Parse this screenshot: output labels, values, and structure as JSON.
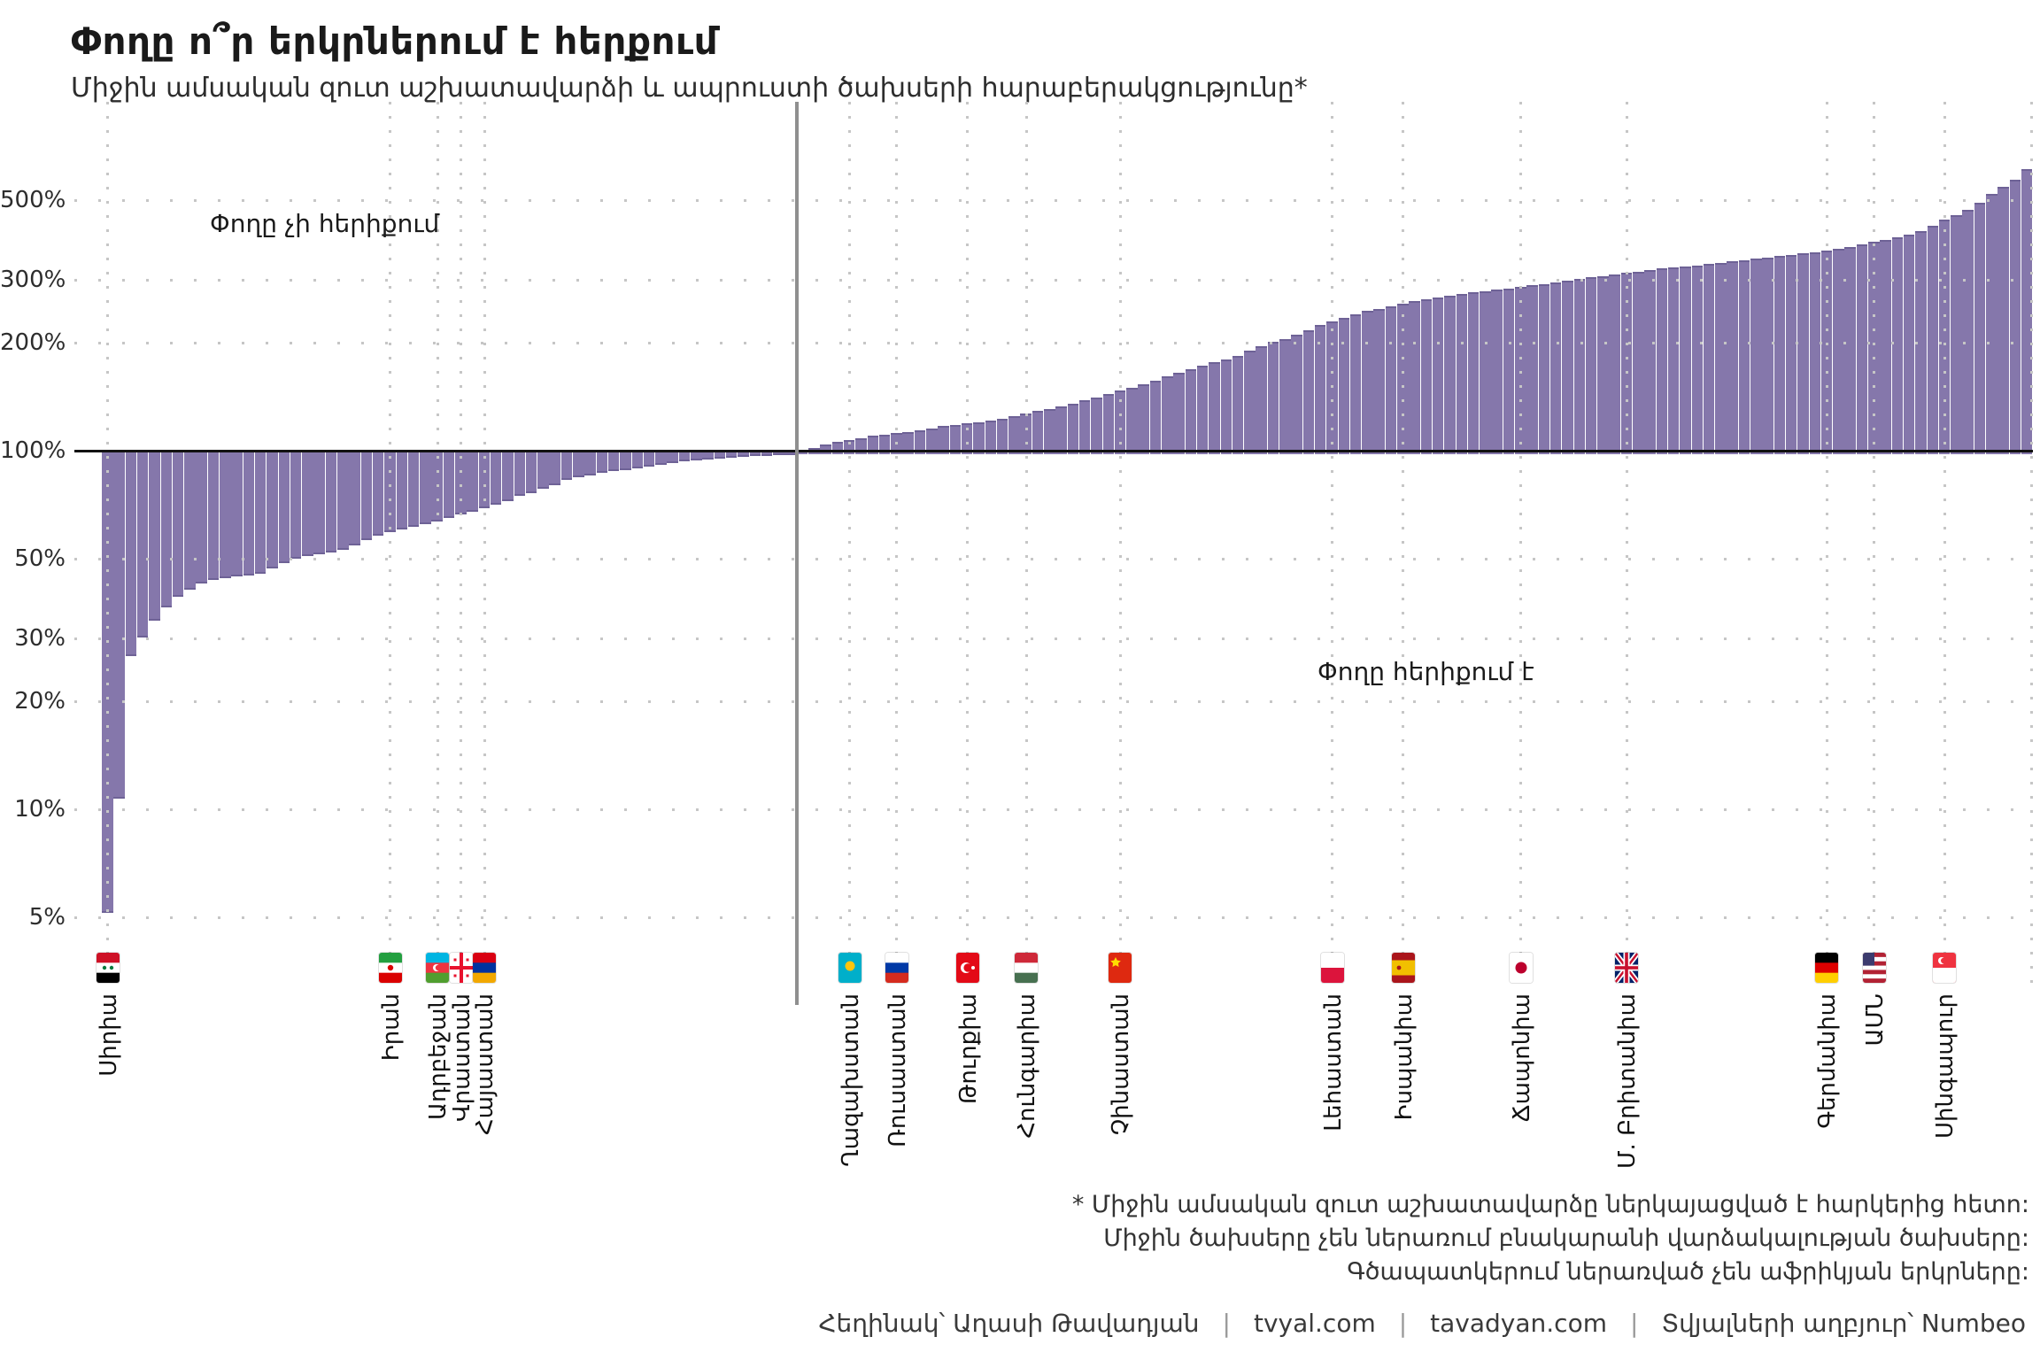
{
  "header": {
    "title": "Փողը ո՞ր երկրներում է հերքում",
    "subtitle": "Միջին ամսական զուտ աշխատավարձի և ապրուստի ծախսերի հարաբերակցությունը*"
  },
  "chart_data": {
    "type": "bar",
    "title": "Փողը ո՞ր երկրներում է հերքում",
    "subtitle": "Միջին ամսական զուտ աշխատավարձի և ապրուստի ծախսերի հարաբերակցությունը*",
    "yscale": "log",
    "unit": "%",
    "yticks": [
      5,
      10,
      20,
      30,
      50,
      100,
      200,
      300,
      500
    ],
    "ylim": [
      4.5,
      650
    ],
    "baseline_value": 100,
    "n_bars": 164,
    "below_baseline_count": 59,
    "grid": "dotted",
    "values": [
      5.2,
      10.8,
      27,
      30.5,
      34,
      37,
      39.5,
      41.5,
      43,
      44,
      44.5,
      45,
      45.5,
      46,
      47.5,
      49,
      50.5,
      51.5,
      52,
      52.5,
      53.5,
      55,
      57,
      58.5,
      60,
      61,
      62,
      63,
      64,
      65.5,
      67,
      68.5,
      70,
      71.5,
      73,
      75.5,
      77,
      79,
      81,
      84,
      85.5,
      86.5,
      87.5,
      88.5,
      89.5,
      90.5,
      91.5,
      92.5,
      93.5,
      94.5,
      95,
      95.5,
      96,
      96.5,
      97,
      97.5,
      98,
      98.5,
      99.5,
      100.5,
      102,
      104,
      106,
      107,
      108.5,
      110,
      111,
      112,
      113,
      114,
      115.5,
      117,
      118,
      119,
      120,
      121,
      123,
      125,
      127,
      129,
      131,
      133,
      135.5,
      138,
      141,
      144,
      147,
      150,
      153.5,
      157,
      161,
      165,
      169,
      173,
      177,
      180,
      184,
      190,
      196,
      201,
      205,
      211,
      217,
      224,
      230,
      235,
      240,
      245,
      249,
      253,
      257,
      261,
      265,
      268,
      271,
      274,
      277,
      279,
      281,
      283,
      286,
      289,
      292,
      295,
      298,
      301,
      304,
      307,
      310,
      313,
      316,
      319,
      322,
      325,
      327,
      329,
      331,
      334,
      337,
      340,
      343,
      346,
      349,
      352,
      355,
      358,
      362,
      366,
      370,
      376,
      382,
      388,
      394,
      400,
      410,
      425,
      440,
      455,
      470,
      490,
      520,
      545,
      570,
      610
    ],
    "annotations": {
      "left": "Փողը չի հերիքում",
      "right": "Փողը հերիքում է"
    },
    "labeled_countries": [
      {
        "name": "Սիրիա",
        "flag": "syria",
        "bar": 1,
        "value": 5.2
      },
      {
        "name": "Իրան",
        "flag": "iran",
        "bar": 25,
        "value": 60
      },
      {
        "name": "Ադրբեջան",
        "flag": "azerbaijan",
        "bar": 29,
        "value": 64
      },
      {
        "name": "Վրաստան",
        "flag": "georgia",
        "bar": 31,
        "value": 67
      },
      {
        "name": "Հայաստան",
        "flag": "armenia",
        "bar": 33,
        "value": 70
      },
      {
        "name": "Ղազախստան",
        "flag": "kazakhstan",
        "bar": 64,
        "value": 107
      },
      {
        "name": "Ռուսաստան",
        "flag": "russia",
        "bar": 68,
        "value": 112
      },
      {
        "name": "Թուրքիա",
        "flag": "turkey",
        "bar": 74,
        "value": 119
      },
      {
        "name": "Հունգարիա",
        "flag": "hungary",
        "bar": 79,
        "value": 127
      },
      {
        "name": "Չինաստան",
        "flag": "china",
        "bar": 87,
        "value": 147
      },
      {
        "name": "Լեհաստան",
        "flag": "poland",
        "bar": 105,
        "value": 230
      },
      {
        "name": "Իսպանիա",
        "flag": "spain",
        "bar": 111,
        "value": 257
      },
      {
        "name": "Ճապոնիա",
        "flag": "japan",
        "bar": 121,
        "value": 286
      },
      {
        "name": "Մ. Բրիտանիա",
        "flag": "uk",
        "bar": 130,
        "value": 313
      },
      {
        "name": "Գերմանիա",
        "flag": "germany",
        "bar": 147,
        "value": 362
      },
      {
        "name": "ԱՄՆ",
        "flag": "usa",
        "bar": 151,
        "value": 382
      },
      {
        "name": "Սինգապուր",
        "flag": "singapore",
        "bar": 157,
        "value": 440
      }
    ],
    "colors": {
      "bar": "#8577AB",
      "bar_edge": "#6E6296",
      "baseline": "#111111",
      "separator": "#8F8F8F",
      "grid": "#C6C6C6"
    }
  },
  "footnote": {
    "lines": [
      "* Միջին ամսական զուտ աշխատավարձը ներկայացված է հարկերից հետո:",
      "Միջին ծախսերը չեն ներառում բնակարանի վարձակալության ծախսերը:",
      "Գծապատկերում ներառված չեն աֆրիկյան երկրները:"
    ]
  },
  "credits": {
    "author": "Հեղինակ՝ Աղասի Թավադյան",
    "site1": "tvyal.com",
    "site2": "tavadyan.com",
    "source": "Տվյալների աղբյուր՝ Numbeo",
    "separator": "|"
  }
}
